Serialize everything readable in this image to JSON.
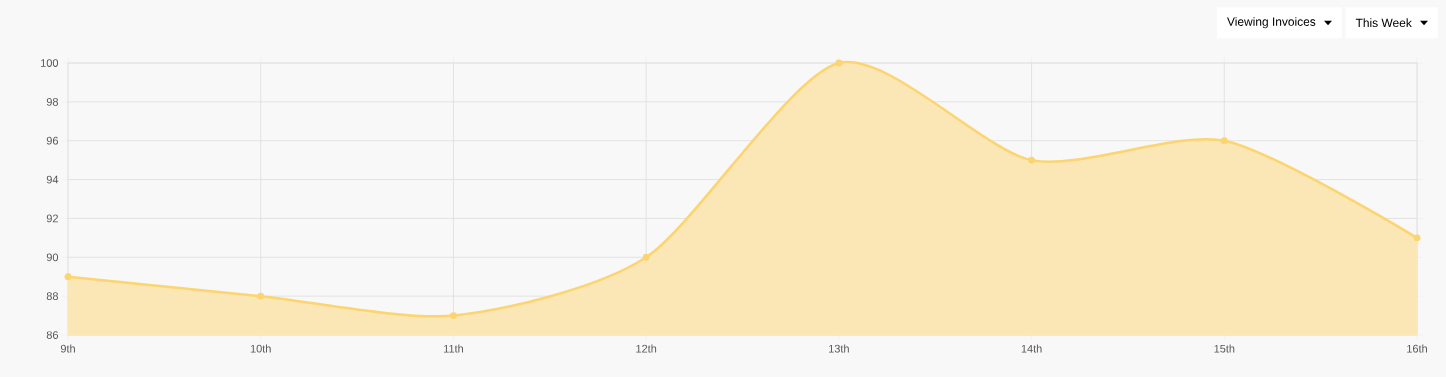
{
  "chart_data": {
    "type": "area",
    "categories": [
      "9th",
      "10th",
      "11th",
      "12th",
      "13th",
      "14th",
      "15th",
      "16th"
    ],
    "values": [
      89,
      88,
      87,
      90,
      100,
      95,
      96,
      91
    ],
    "color": "#fcd470",
    "ylim": [
      86,
      100
    ],
    "yticks": [
      86,
      88,
      90,
      92,
      94,
      96,
      98,
      100
    ],
    "grid": true,
    "marker": "circle",
    "annotations": [
      "Viewing Invoices",
      "This Week"
    ]
  }
}
